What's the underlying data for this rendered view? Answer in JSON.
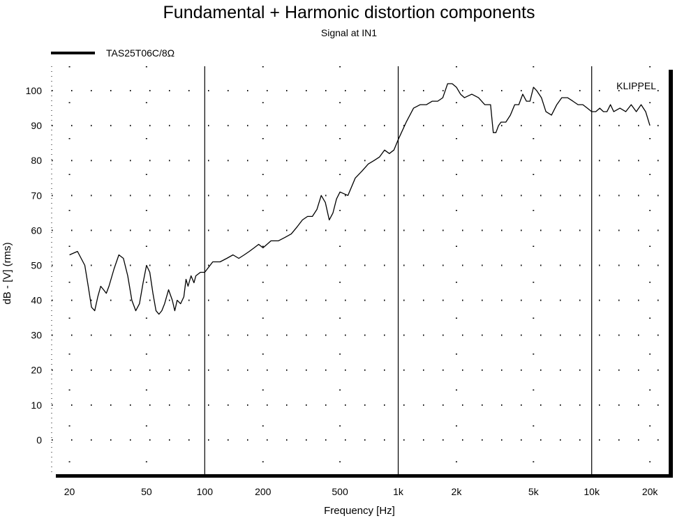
{
  "chart_data": {
    "type": "line",
    "title": "Fundamental + Harmonic distortion components",
    "subtitle": "Signal at IN1",
    "xlabel": "Frequency [Hz]",
    "ylabel": "dB - [V]  (rms)",
    "x_scale": "log",
    "xlim": [
      17,
      25000
    ],
    "ylim": [
      -10,
      107
    ],
    "x_ticks": [
      {
        "value": 20,
        "label": "20"
      },
      {
        "value": 50,
        "label": "50"
      },
      {
        "value": 100,
        "label": "100"
      },
      {
        "value": 200,
        "label": "200"
      },
      {
        "value": 500,
        "label": "500"
      },
      {
        "value": 1000,
        "label": "1k"
      },
      {
        "value": 2000,
        "label": "2k"
      },
      {
        "value": 5000,
        "label": "5k"
      },
      {
        "value": 10000,
        "label": "10k"
      },
      {
        "value": 20000,
        "label": "20k"
      }
    ],
    "y_ticks": [
      0,
      10,
      20,
      30,
      40,
      50,
      60,
      70,
      80,
      90,
      100
    ],
    "grid": "dotted",
    "major_vertical_lines": [
      100,
      1000,
      10000
    ],
    "legend_position": "top-left",
    "watermark": "KLIPPEL",
    "series": [
      {
        "name": "TAS25T06C/8Ω",
        "color": "#000000",
        "x": [
          20,
          22,
          24,
          25,
          26,
          27,
          28,
          29,
          30,
          31,
          32,
          34,
          36,
          38,
          40,
          42,
          44,
          46,
          48,
          50,
          52,
          54,
          56,
          58,
          60,
          62,
          65,
          68,
          70,
          72,
          75,
          78,
          80,
          82,
          85,
          88,
          90,
          95,
          100,
          110,
          120,
          130,
          140,
          150,
          160,
          170,
          180,
          190,
          200,
          220,
          240,
          260,
          280,
          300,
          320,
          340,
          360,
          380,
          400,
          420,
          440,
          460,
          480,
          500,
          550,
          600,
          650,
          700,
          750,
          800,
          850,
          900,
          950,
          1000,
          1100,
          1200,
          1300,
          1400,
          1500,
          1600,
          1700,
          1800,
          1900,
          2000,
          2100,
          2200,
          2400,
          2600,
          2800,
          3000,
          3100,
          3200,
          3300,
          3400,
          3600,
          3800,
          4000,
          4200,
          4400,
          4600,
          4800,
          5000,
          5200,
          5500,
          5800,
          6200,
          6600,
          7000,
          7500,
          8000,
          8500,
          9000,
          9500,
          10000,
          10500,
          11000,
          11500,
          12000,
          12500,
          13000,
          14000,
          15000,
          16000,
          17000,
          18000,
          19000,
          20000
        ],
        "y": [
          53,
          54,
          50,
          44,
          38,
          37,
          41,
          44,
          43,
          42,
          44,
          49,
          53,
          52,
          47,
          40,
          37,
          39,
          45,
          50,
          48,
          42,
          37,
          36,
          37,
          39,
          43,
          40,
          37,
          40,
          39,
          41,
          46,
          44,
          47,
          45,
          47,
          48,
          48,
          51,
          51,
          52,
          53,
          52,
          53,
          54,
          55,
          56,
          55,
          57,
          57,
          58,
          59,
          61,
          63,
          64,
          64,
          66,
          70,
          68,
          63,
          65,
          69,
          71,
          70,
          75,
          77,
          79,
          80,
          81,
          83,
          82,
          83,
          86,
          91,
          95,
          96,
          96,
          97,
          97,
          98,
          102,
          102,
          101,
          99,
          98,
          99,
          98,
          96,
          96,
          88,
          88,
          90,
          91,
          91,
          93,
          96,
          96,
          99,
          97,
          97,
          101,
          100,
          98,
          94,
          93,
          96,
          98,
          98,
          97,
          96,
          96,
          95,
          94,
          94,
          95,
          94,
          94,
          96,
          94,
          95,
          94,
          96,
          94,
          96,
          94,
          90
        ]
      }
    ]
  }
}
